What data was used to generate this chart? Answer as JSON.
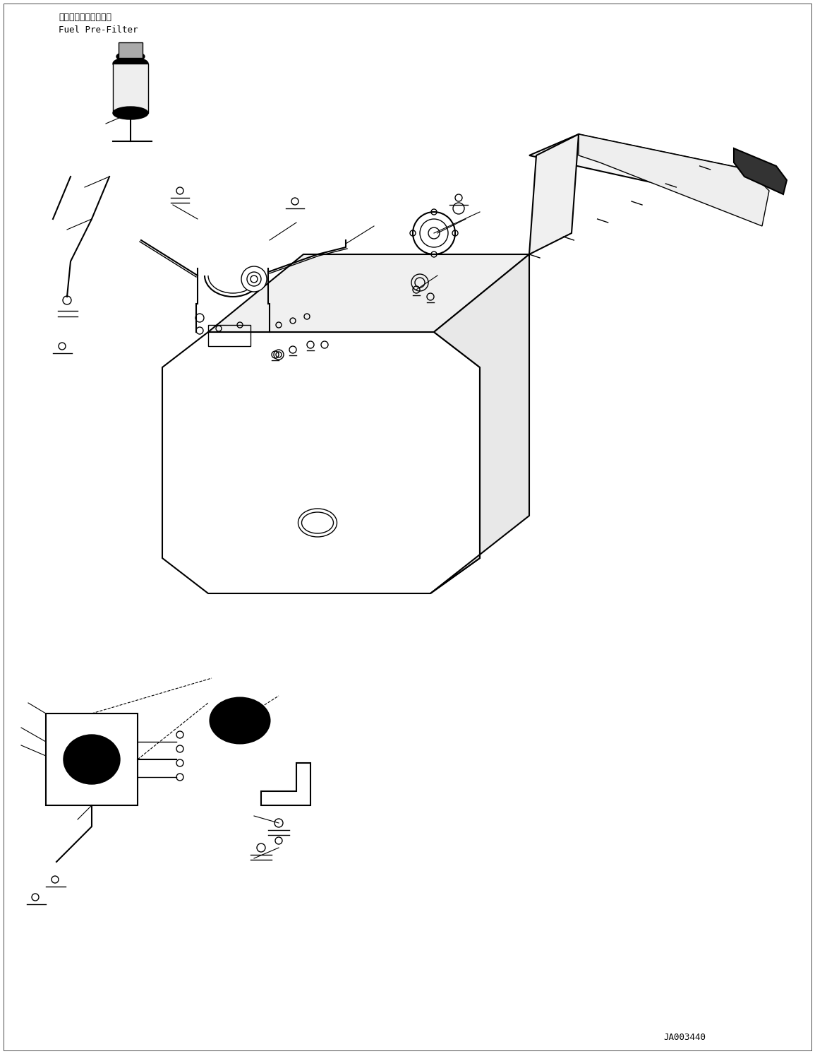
{
  "title_jp": "フェエルプリフィルタ",
  "title_en": "Fuel Pre-Filter",
  "part_number": "JA003440",
  "bg_color": "#ffffff",
  "line_color": "#000000",
  "fig_width": 11.55,
  "fig_height": 14.92
}
